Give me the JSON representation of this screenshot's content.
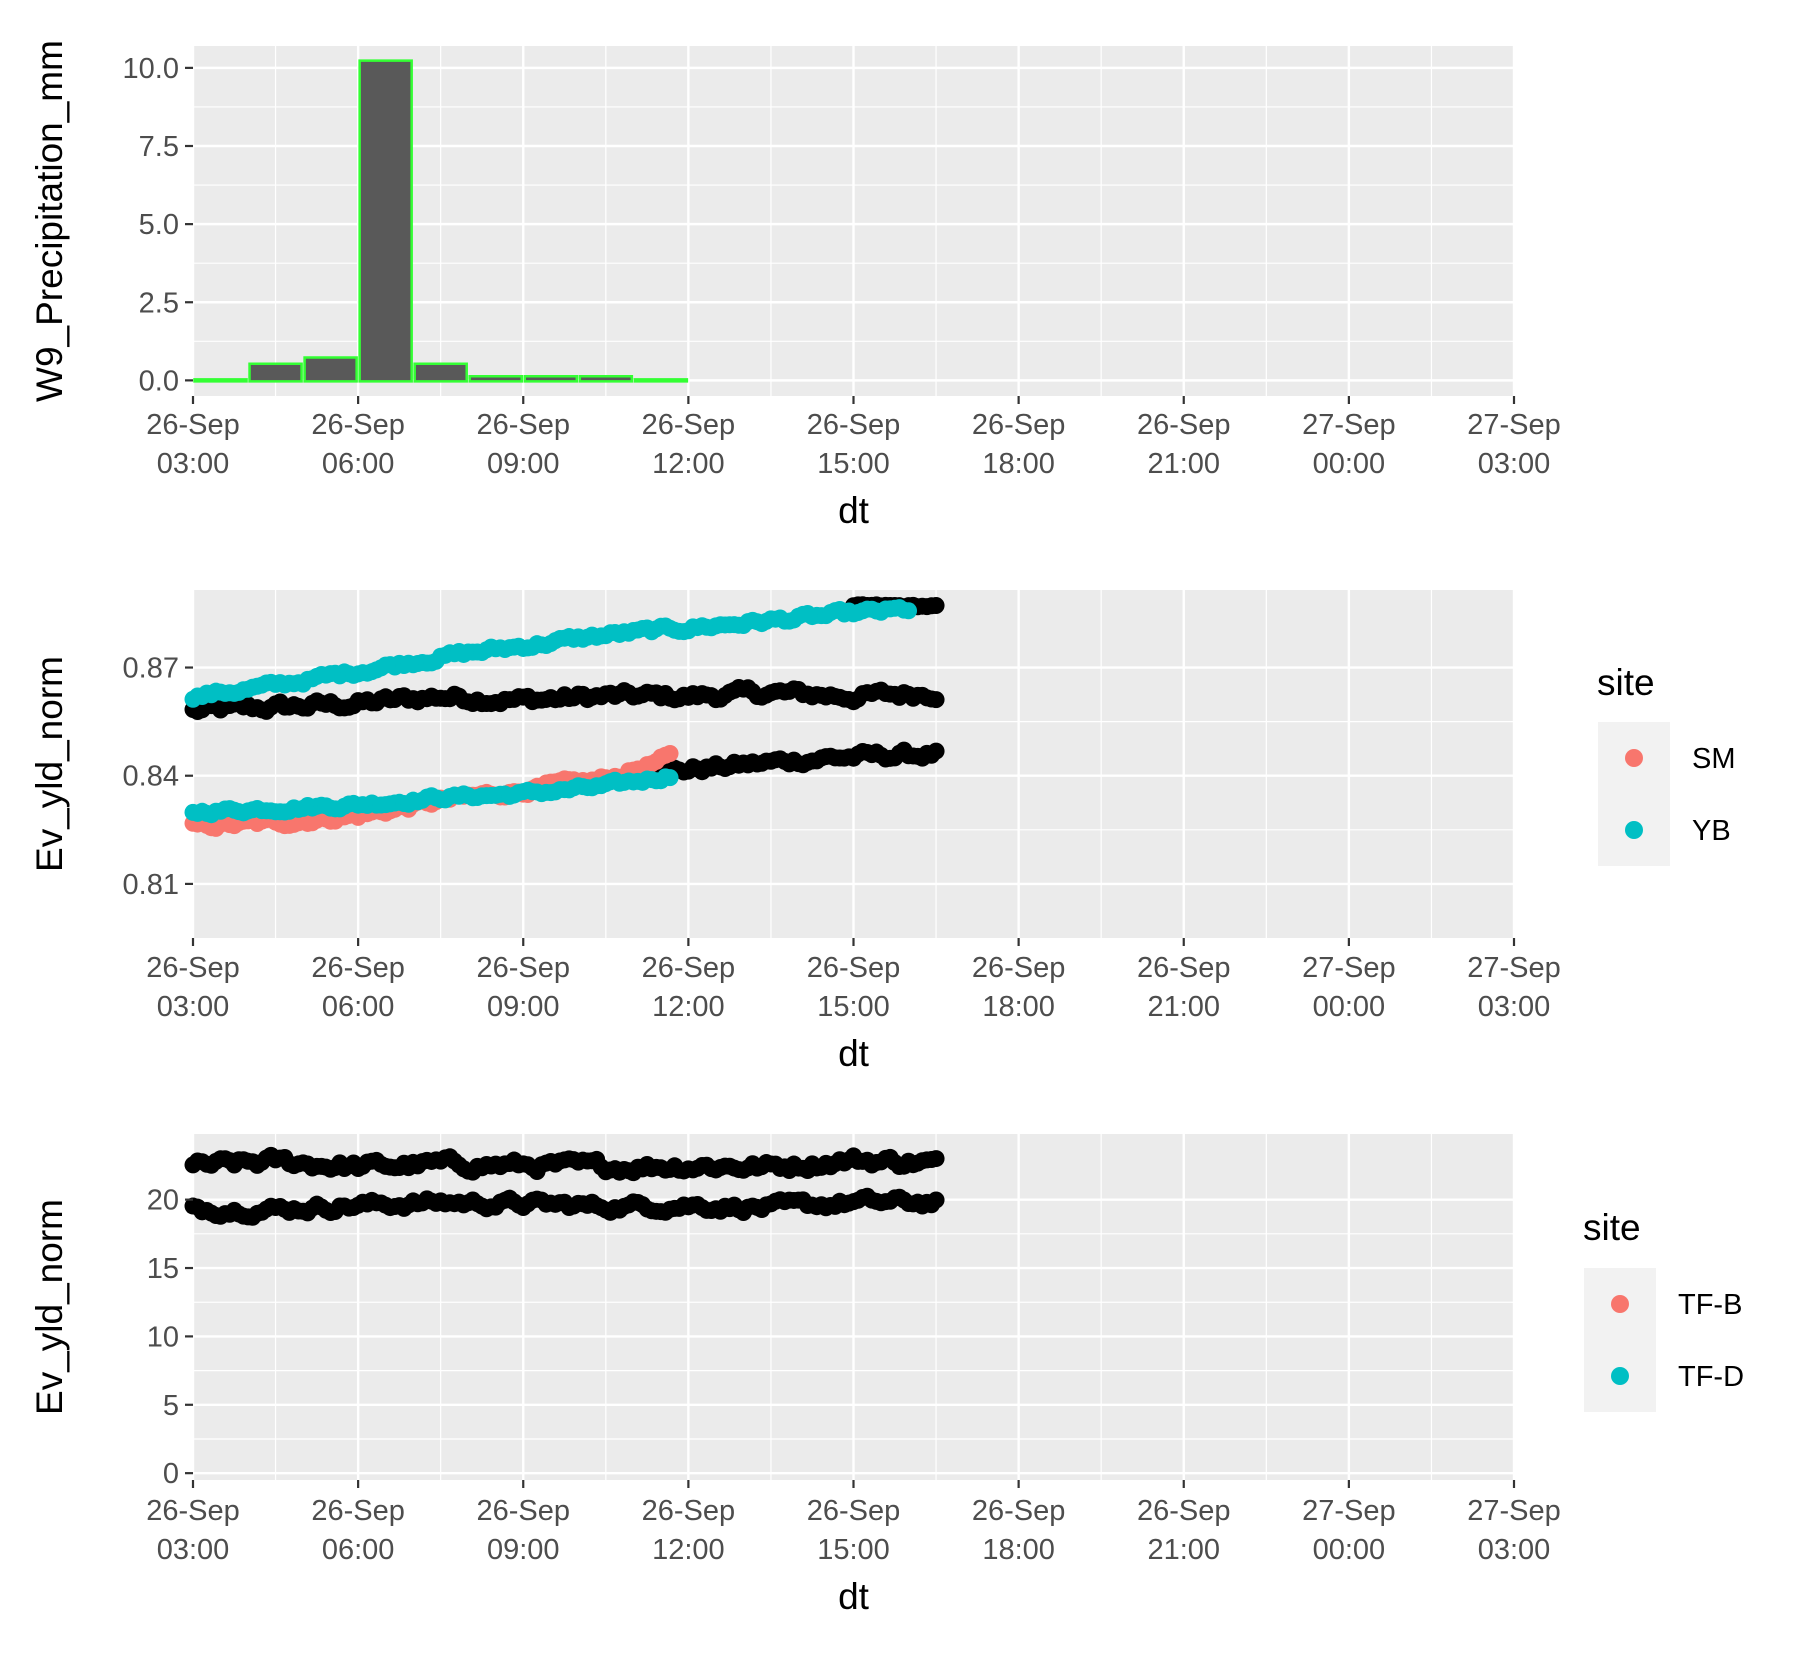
{
  "chart_data": [
    {
      "type": "bar",
      "title": "",
      "xlabel": "dt",
      "ylabel": "W9_Precipitation_mm",
      "x_ticks": [
        "2024-09-26T03:00",
        "2024-09-26T06:00",
        "2024-09-26T09:00",
        "2024-09-26T12:00",
        "2024-09-26T15:00",
        "2024-09-26T18:00",
        "2024-09-26T21:00",
        "2024-09-27T00:00",
        "2024-09-27T03:00"
      ],
      "x_tick_labels": [
        [
          "26-Sep",
          "03:00"
        ],
        [
          "26-Sep",
          "06:00"
        ],
        [
          "26-Sep",
          "09:00"
        ],
        [
          "26-Sep",
          "12:00"
        ],
        [
          "26-Sep",
          "15:00"
        ],
        [
          "26-Sep",
          "18:00"
        ],
        [
          "26-Sep",
          "21:00"
        ],
        [
          "27-Sep",
          "00:00"
        ],
        [
          "27-Sep",
          "03:00"
        ]
      ],
      "y_ticks": [
        0,
        2.5,
        5,
        7.5,
        10
      ],
      "y_tick_labels": [
        "0.0",
        "2.5",
        "5.0",
        "7.5",
        "10.0"
      ],
      "ylim": [
        -0.5,
        10.7
      ],
      "grid": true,
      "bar_fill": "#595959",
      "bar_outline": "#33ff33",
      "bars": [
        {
          "x": "2024-09-26T03:30",
          "value": 0.0
        },
        {
          "x": "2024-09-26T04:30",
          "value": 0.5
        },
        {
          "x": "2024-09-26T05:30",
          "value": 0.7
        },
        {
          "x": "2024-09-26T06:30",
          "value": 10.2
        },
        {
          "x": "2024-09-26T07:30",
          "value": 0.5
        },
        {
          "x": "2024-09-26T08:30",
          "value": 0.1
        },
        {
          "x": "2024-09-26T09:30",
          "value": 0.1
        },
        {
          "x": "2024-09-26T10:30",
          "value": 0.1
        },
        {
          "x": "2024-09-26T11:30",
          "value": 0.0
        }
      ]
    },
    {
      "type": "scatter",
      "title": "",
      "xlabel": "dt",
      "ylabel": "Ev_yld_norm",
      "x_ticks": [
        "2024-09-26T03:00",
        "2024-09-26T06:00",
        "2024-09-26T09:00",
        "2024-09-26T12:00",
        "2024-09-26T15:00",
        "2024-09-26T18:00",
        "2024-09-26T21:00",
        "2024-09-27T00:00",
        "2024-09-27T03:00"
      ],
      "x_tick_labels": [
        [
          "26-Sep",
          "03:00"
        ],
        [
          "26-Sep",
          "06:00"
        ],
        [
          "26-Sep",
          "09:00"
        ],
        [
          "26-Sep",
          "12:00"
        ],
        [
          "26-Sep",
          "15:00"
        ],
        [
          "26-Sep",
          "18:00"
        ],
        [
          "26-Sep",
          "21:00"
        ],
        [
          "27-Sep",
          "00:00"
        ],
        [
          "27-Sep",
          "03:00"
        ]
      ],
      "y_ticks": [
        0.81,
        0.84,
        0.87
      ],
      "y_tick_labels": [
        "0.81",
        "0.84",
        "0.87"
      ],
      "ylim": [
        0.795,
        0.8915
      ],
      "grid": true,
      "legend": {
        "title": "site",
        "position": "right",
        "entries": [
          {
            "label": "SM",
            "color": "#f8766d"
          },
          {
            "label": "YB",
            "color": "#00bfc4"
          }
        ]
      },
      "series": [
        {
          "color": "#000000",
          "x_range": [
            "2024-09-26T03:00",
            "2024-09-26T16:30"
          ],
          "anchors": [
            [
              0,
              0.858
            ],
            [
              1.5,
              0.859
            ],
            [
              3,
              0.86
            ],
            [
              4.5,
              0.862
            ],
            [
              6,
              0.861
            ],
            [
              7.5,
              0.862
            ],
            [
              9,
              0.862
            ],
            [
              10.5,
              0.863
            ],
            [
              12,
              0.862
            ],
            [
              13.5,
              0.863
            ]
          ],
          "noise": 0.0012
        },
        {
          "color": "#000000",
          "x_range": [
            "2024-09-26T11:30",
            "2024-09-26T16:30"
          ],
          "anchors": [
            [
              8.5,
              0.841
            ],
            [
              10,
              0.843
            ],
            [
              11.5,
              0.845
            ],
            [
              13.5,
              0.846
            ]
          ],
          "noise": 0.0011
        },
        {
          "color": "#000000",
          "x_range": [
            "2024-09-26T15:00",
            "2024-09-26T16:30"
          ],
          "anchors": [
            [
              12,
              0.887
            ],
            [
              13.5,
              0.887
            ]
          ],
          "noise": 0.0003
        },
        {
          "name": "SM",
          "color": "#f8766d",
          "x_range": [
            "2024-09-26T03:00",
            "2024-09-26T11:40"
          ],
          "anchors": [
            [
              0,
              0.826
            ],
            [
              1.5,
              0.827
            ],
            [
              3,
              0.829
            ],
            [
              4.5,
              0.833
            ],
            [
              6,
              0.836
            ],
            [
              7.5,
              0.839
            ],
            [
              8.67,
              0.845
            ]
          ],
          "noise": 0.0009
        },
        {
          "name": "YB",
          "color": "#00bfc4",
          "x_range": [
            "2024-09-26T03:00",
            "2024-09-26T11:40"
          ],
          "anchors": [
            [
              0,
              0.83
            ],
            [
              1.5,
              0.831
            ],
            [
              3,
              0.832
            ],
            [
              4.5,
              0.834
            ],
            [
              6,
              0.835
            ],
            [
              7.5,
              0.837
            ],
            [
              8.67,
              0.84
            ]
          ],
          "noise": 0.0007
        },
        {
          "name": "YB",
          "color": "#00bfc4",
          "x_range": [
            "2024-09-26T03:00",
            "2024-09-26T16:00"
          ],
          "anchors": [
            [
              0,
              0.862
            ],
            [
              1.5,
              0.865
            ],
            [
              3,
              0.869
            ],
            [
              4.5,
              0.873
            ],
            [
              6,
              0.876
            ],
            [
              7.5,
              0.879
            ],
            [
              9,
              0.881
            ],
            [
              10.5,
              0.883
            ],
            [
              12,
              0.885
            ],
            [
              13,
              0.886
            ]
          ],
          "noise": 0.0008
        }
      ]
    },
    {
      "type": "scatter",
      "title": "",
      "xlabel": "dt",
      "ylabel": "Ev_yld_norm",
      "x_ticks": [
        "2024-09-26T03:00",
        "2024-09-26T06:00",
        "2024-09-26T09:00",
        "2024-09-26T12:00",
        "2024-09-26T15:00",
        "2024-09-26T18:00",
        "2024-09-26T21:00",
        "2024-09-27T00:00",
        "2024-09-27T03:00"
      ],
      "x_tick_labels": [
        [
          "26-Sep",
          "03:00"
        ],
        [
          "26-Sep",
          "06:00"
        ],
        [
          "26-Sep",
          "09:00"
        ],
        [
          "26-Sep",
          "12:00"
        ],
        [
          "26-Sep",
          "15:00"
        ],
        [
          "26-Sep",
          "18:00"
        ],
        [
          "26-Sep",
          "21:00"
        ],
        [
          "27-Sep",
          "00:00"
        ],
        [
          "27-Sep",
          "03:00"
        ]
      ],
      "y_ticks": [
        0,
        5,
        10,
        15,
        20
      ],
      "y_tick_labels": [
        "0",
        "5",
        "10",
        "15",
        "20"
      ],
      "ylim": [
        -0.5,
        24.8
      ],
      "grid": true,
      "legend": {
        "title": "site",
        "position": "right",
        "entries": [
          {
            "label": "TF-B",
            "color": "#f8766d"
          },
          {
            "label": "TF-D",
            "color": "#00bfc4"
          }
        ]
      },
      "series": [
        {
          "color": "#000000",
          "x_range": [
            "2024-09-26T03:00",
            "2024-09-26T16:30"
          ],
          "anchors": [
            [
              0,
              22.4
            ],
            [
              1.5,
              22.8
            ],
            [
              3,
              22.4
            ],
            [
              4.5,
              22.6
            ],
            [
              6,
              22.5
            ],
            [
              7.5,
              22.4
            ],
            [
              9,
              22.5
            ],
            [
              10.5,
              22.4
            ],
            [
              12,
              22.9
            ],
            [
              13.5,
              22.7
            ]
          ],
          "noise": 0.35
        },
        {
          "color": "#000000",
          "x_range": [
            "2024-09-26T03:00",
            "2024-09-26T16:30"
          ],
          "anchors": [
            [
              0,
              19.3
            ],
            [
              1.5,
              19.3
            ],
            [
              3,
              19.6
            ],
            [
              4.5,
              19.8
            ],
            [
              6,
              19.7
            ],
            [
              7.5,
              19.5
            ],
            [
              9,
              19.6
            ],
            [
              10.5,
              19.4
            ],
            [
              12,
              19.8
            ],
            [
              13.5,
              19.8
            ]
          ],
          "noise": 0.3
        }
      ]
    }
  ]
}
